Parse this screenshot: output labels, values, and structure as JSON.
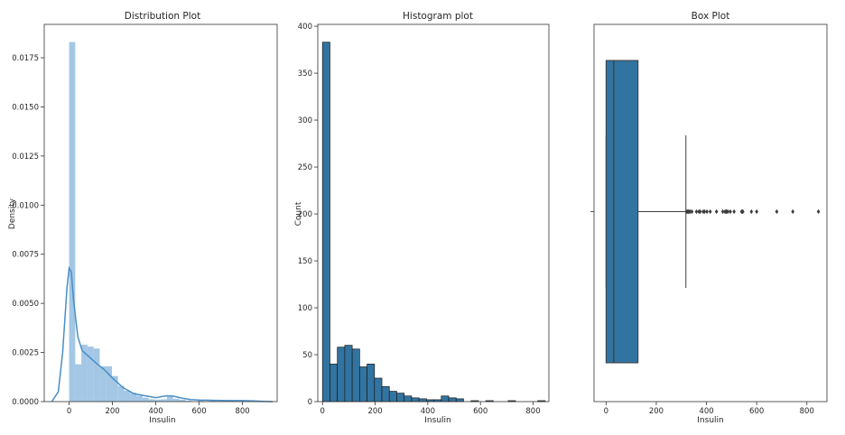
{
  "chart_data": [
    {
      "type": "bar",
      "title": "Distribution Plot",
      "xlabel": "Insulin",
      "ylabel": "Density",
      "xlim": [
        -115,
        960
      ],
      "ylim": [
        0,
        0.0192
      ],
      "xticks": [
        0,
        200,
        400,
        600,
        800
      ],
      "xtick_labels": [
        "0",
        "200",
        "400",
        "600",
        "800"
      ],
      "yticks": [
        0.0,
        0.0025,
        0.005,
        0.0075,
        0.01,
        0.0125,
        0.015,
        0.0175
      ],
      "ytick_labels": [
        "0.0000",
        "0.0025",
        "0.0050",
        "0.0075",
        "0.0100",
        "0.0125",
        "0.0150",
        "0.0175"
      ],
      "bin_start": 0,
      "bin_width": 28.2,
      "densities": [
        0.0183,
        0.0019,
        0.0029,
        0.0028,
        0.0027,
        0.0018,
        0.0018,
        0.0013,
        0.0008,
        0.00055,
        0.00045,
        0.0003,
        0.0002,
        0.00012,
        0.0001,
        0.00012,
        0.00025,
        0.00015,
        0.0001,
        5e-05,
        0.0,
        5e-05,
        0.0,
        5e-05,
        0.0,
        0.0,
        5e-05,
        0.0,
        0.0,
        4e-05
      ],
      "kde_x": [
        -80,
        -50,
        -30,
        -10,
        0,
        10,
        20,
        40,
        60,
        80,
        100,
        130,
        160,
        200,
        250,
        300,
        350,
        400,
        450,
        480,
        520,
        560,
        600,
        650,
        700,
        750,
        800,
        850,
        900,
        940
      ],
      "kde_y": [
        0.0,
        0.0005,
        0.0025,
        0.0058,
        0.0068,
        0.0066,
        0.0052,
        0.0033,
        0.0026,
        0.0024,
        0.0022,
        0.0019,
        0.00165,
        0.0012,
        0.0007,
        0.0004,
        0.0003,
        0.0002,
        0.0003,
        0.00028,
        0.00018,
        0.0001,
        8e-05,
        7e-05,
        6e-05,
        5e-05,
        5e-05,
        3e-05,
        1e-05,
        0.0
      ],
      "bar_color": "#9ec4e3",
      "line_color": "#4a8ec6"
    },
    {
      "type": "bar",
      "title": "Histogram plot",
      "xlabel": "Insulin",
      "ylabel": "Count",
      "xlim": [
        -18,
        860
      ],
      "ylim": [
        0,
        402
      ],
      "xticks": [
        0,
        200,
        400,
        600,
        800
      ],
      "xtick_labels": [
        "0",
        "200",
        "400",
        "600",
        "800"
      ],
      "yticks": [
        0,
        50,
        100,
        150,
        200,
        250,
        300,
        350,
        400
      ],
      "ytick_labels": [
        "0",
        "50",
        "100",
        "150",
        "200",
        "250",
        "300",
        "350",
        "400"
      ],
      "bin_start": 0,
      "bin_width": 28.2,
      "counts": [
        383,
        40,
        58,
        60,
        56,
        37,
        40,
        25,
        16,
        11,
        9,
        6,
        4,
        3,
        2,
        2,
        6,
        4,
        3,
        0,
        1,
        0,
        1,
        0,
        0,
        1,
        0,
        0,
        0,
        1
      ],
      "bar_color": "#3274a1"
    },
    {
      "type": "box",
      "title": "Box Plot",
      "xlabel": "Insulin",
      "xlim": [
        -48,
        880
      ],
      "xticks": [
        0,
        200,
        400,
        600,
        800
      ],
      "xtick_labels": [
        "0",
        "200",
        "400",
        "600",
        "800"
      ],
      "min": 0,
      "q1": 0,
      "median": 30.5,
      "q3": 127.25,
      "whisker_high": 318,
      "outliers": [
        321,
        325,
        326,
        328,
        330,
        335,
        342,
        360,
        370,
        375,
        387,
        392,
        402,
        415,
        440,
        465,
        474,
        478,
        480,
        485,
        495,
        510,
        540,
        543,
        545,
        579,
        600,
        680,
        744,
        846
      ],
      "box_color": "#3274a1"
    }
  ]
}
